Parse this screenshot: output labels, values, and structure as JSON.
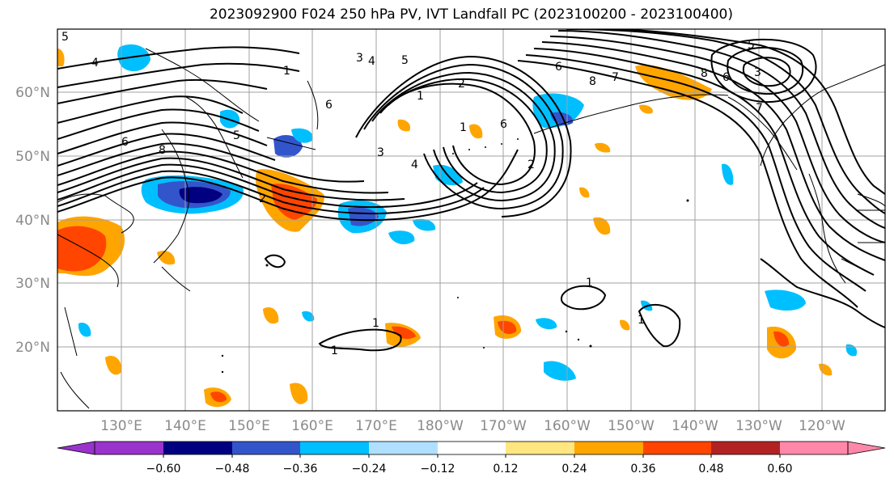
{
  "title": "2023092900 F024 250 hPa PV, IVT Landfall PC (2023100200 - 2023100400)",
  "lat_labels": [
    "60°N",
    "50°N",
    "40°N",
    "30°N",
    "20°N"
  ],
  "lon_labels": [
    "130°E",
    "140°E",
    "150°E",
    "160°E",
    "170°E",
    "180°W",
    "170°W",
    "160°W",
    "150°W",
    "140°W",
    "130°W",
    "120°W"
  ],
  "colorbar": {
    "ticks": [
      "−0.60",
      "−0.48",
      "−0.36",
      "−0.24",
      "−0.12",
      "0.12",
      "0.24",
      "0.36",
      "0.48",
      "0.60"
    ],
    "colors": [
      "#9933cc",
      "#000080",
      "#3355cc",
      "#00bfff",
      "#b0e0ff",
      "#ffffff",
      "#ffe680",
      "#ffa500",
      "#ff4500",
      "#b22222",
      "#ff88aa"
    ]
  },
  "contour_labels": [
    "5",
    "4",
    "6",
    "5",
    "1",
    "2",
    "8",
    "6",
    "4",
    "3",
    "2",
    "1",
    "6",
    "5",
    "4",
    "3",
    "1",
    "2",
    "6",
    "8",
    "7",
    "8",
    "7",
    "6",
    "5",
    "3",
    "1",
    "1",
    "1",
    "1"
  ]
}
